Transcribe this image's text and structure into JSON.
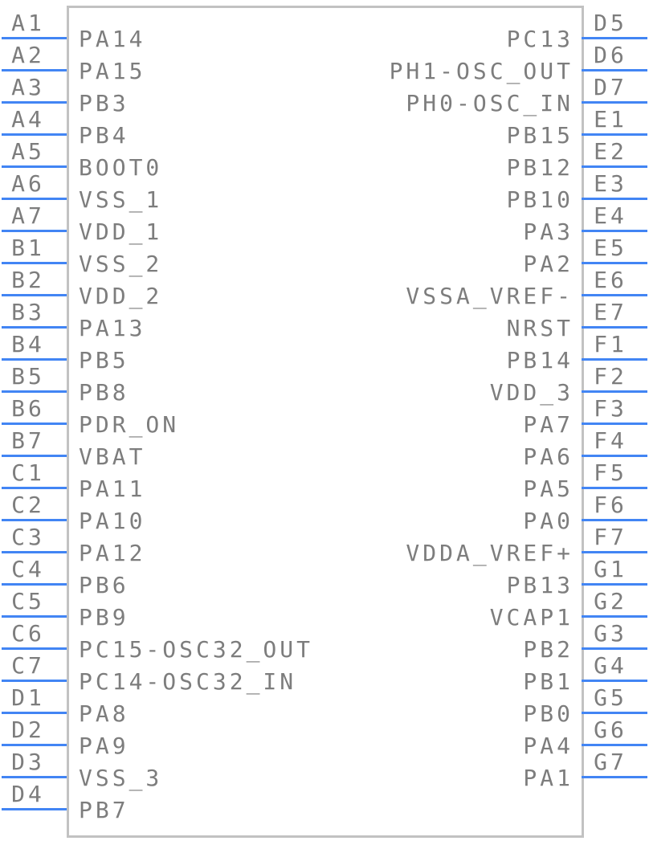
{
  "diagram": {
    "type": "schematic-symbol-pinout",
    "left_pins": [
      {
        "number": "A1",
        "name": "PA14"
      },
      {
        "number": "A2",
        "name": "PA15"
      },
      {
        "number": "A3",
        "name": "PB3"
      },
      {
        "number": "A4",
        "name": "PB4"
      },
      {
        "number": "A5",
        "name": "BOOT0"
      },
      {
        "number": "A6",
        "name": "VSS_1"
      },
      {
        "number": "A7",
        "name": "VDD_1"
      },
      {
        "number": "B1",
        "name": "VSS_2"
      },
      {
        "number": "B2",
        "name": "VDD_2"
      },
      {
        "number": "B3",
        "name": "PA13"
      },
      {
        "number": "B4",
        "name": "PB5"
      },
      {
        "number": "B5",
        "name": "PB8"
      },
      {
        "number": "B6",
        "name": "PDR_ON"
      },
      {
        "number": "B7",
        "name": "VBAT"
      },
      {
        "number": "C1",
        "name": "PA11"
      },
      {
        "number": "C2",
        "name": "PA10"
      },
      {
        "number": "C3",
        "name": "PA12"
      },
      {
        "number": "C4",
        "name": "PB6"
      },
      {
        "number": "C5",
        "name": "PB9"
      },
      {
        "number": "C6",
        "name": "PC15-OSC32_OUT"
      },
      {
        "number": "C7",
        "name": "PC14-OSC32_IN"
      },
      {
        "number": "D1",
        "name": "PA8"
      },
      {
        "number": "D2",
        "name": "PA9"
      },
      {
        "number": "D3",
        "name": "VSS_3"
      },
      {
        "number": "D4",
        "name": "PB7"
      }
    ],
    "right_pins": [
      {
        "number": "D5",
        "name": "PC13"
      },
      {
        "number": "D6",
        "name": "PH1-OSC_OUT"
      },
      {
        "number": "D7",
        "name": "PH0-OSC_IN"
      },
      {
        "number": "E1",
        "name": "PB15"
      },
      {
        "number": "E2",
        "name": "PB12"
      },
      {
        "number": "E3",
        "name": "PB10"
      },
      {
        "number": "E4",
        "name": "PA3"
      },
      {
        "number": "E5",
        "name": "PA2"
      },
      {
        "number": "E6",
        "name": "VSSA_VREF-"
      },
      {
        "number": "E7",
        "name": "NRST"
      },
      {
        "number": "F1",
        "name": "PB14"
      },
      {
        "number": "F2",
        "name": "VDD_3"
      },
      {
        "number": "F3",
        "name": "PA7"
      },
      {
        "number": "F4",
        "name": "PA6"
      },
      {
        "number": "F5",
        "name": "PA5"
      },
      {
        "number": "F6",
        "name": "PA0"
      },
      {
        "number": "F7",
        "name": "VDDA_VREF+"
      },
      {
        "number": "G1",
        "name": "PB13"
      },
      {
        "number": "G2",
        "name": "VCAP1"
      },
      {
        "number": "G3",
        "name": "PB2"
      },
      {
        "number": "G4",
        "name": "PB1"
      },
      {
        "number": "G5",
        "name": "PB0"
      },
      {
        "number": "G6",
        "name": "PA4"
      },
      {
        "number": "G7",
        "name": "PA1"
      }
    ]
  },
  "colors": {
    "pin_color": "#4285f4",
    "text_color": "#7d7d7d",
    "border_color": "#c2c2c2",
    "bg_color": "#ffffff"
  }
}
